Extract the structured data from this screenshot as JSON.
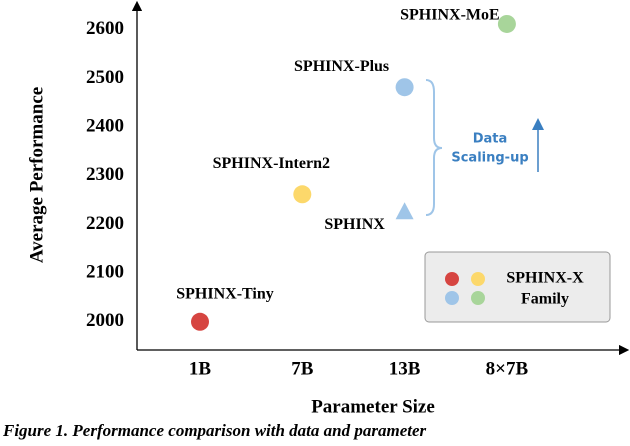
{
  "chart_data": {
    "type": "scatter",
    "y_label": "Average Performance",
    "x_label": "Parameter Size",
    "categories": [
      "1B",
      "7B",
      "13B",
      "8×7B"
    ],
    "ylim": [
      1942,
      2651
    ],
    "yticks": [
      2000,
      2100,
      2200,
      2300,
      2400,
      2500,
      2600
    ],
    "points": [
      {
        "name": "SPHINX-Tiny",
        "x": "1B",
        "y": 2000,
        "color": "#d64541",
        "marker": "circle"
      },
      {
        "name": "SPHINX-Intern2",
        "x": "7B",
        "y": 2262,
        "color": "#fcd86b",
        "marker": "circle"
      },
      {
        "name": "SPHINX",
        "x": "13B",
        "y": 2225,
        "color": "#9fc5e8",
        "marker": "triangle"
      },
      {
        "name": "SPHINX-Plus",
        "x": "13B",
        "y": 2482,
        "color": "#9fc5e8",
        "marker": "circle"
      },
      {
        "name": "SPHINX-MoE",
        "x": "8×7B",
        "y": 2612,
        "color": "#a8d59a",
        "marker": "circle"
      }
    ],
    "annotation": {
      "text": [
        "Data",
        "Scaling-up"
      ],
      "color": "#3a7fc1"
    },
    "legend": {
      "text": [
        "SPHINX-X",
        "Family"
      ],
      "colors": [
        "#d64541",
        "#fcd86b",
        "#9fc5e8",
        "#a8d59a"
      ]
    },
    "caption": "Figure 1. Performance comparison with data and parameter"
  }
}
